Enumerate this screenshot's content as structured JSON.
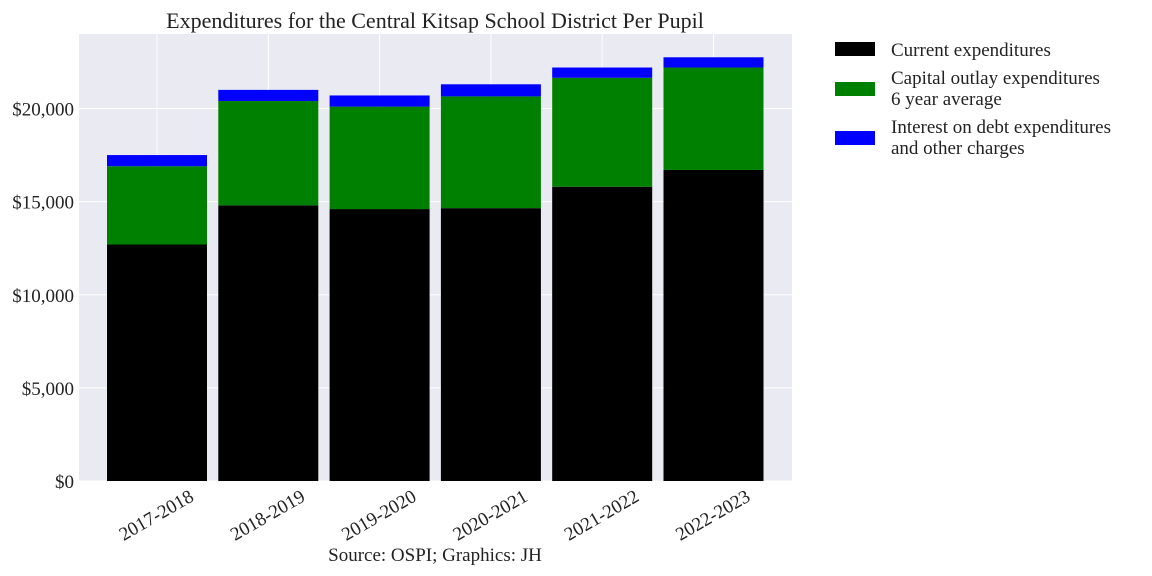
{
  "chart_data": {
    "type": "bar",
    "stacked": true,
    "title": "Expenditures for the Central Kitsap School District Per Pupil",
    "caption": "Source: OSPI; Graphics: JH",
    "categories": [
      "2017-2018",
      "2018-2019",
      "2019-2020",
      "2020-2021",
      "2021-2022",
      "2022-2023"
    ],
    "series": [
      {
        "name": "Current expenditures",
        "color": "#000000",
        "values": [
          12700,
          14800,
          14600,
          14650,
          15800,
          16700
        ]
      },
      {
        "name": "Capital outlay expenditures\n6 year average",
        "color": "#008000",
        "values": [
          4200,
          5600,
          5500,
          6000,
          5850,
          5500
        ]
      },
      {
        "name": "Interest on debt expenditures\nand other charges",
        "color": "#0000ff",
        "values": [
          600,
          600,
          600,
          650,
          550,
          550
        ]
      }
    ],
    "yticks": [
      "$0",
      "$5,000",
      "$10,000",
      "$15,000",
      "$20,000"
    ],
    "ytick_values": [
      0,
      5000,
      10000,
      15000,
      20000
    ],
    "ylim": [
      0,
      24000
    ],
    "grid": true,
    "legend_position": "outside-right"
  }
}
